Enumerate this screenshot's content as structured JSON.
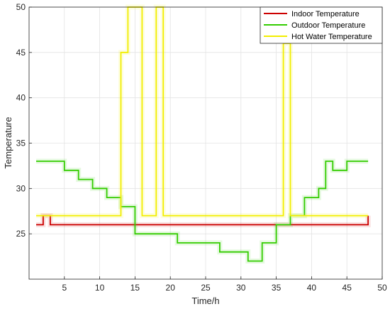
{
  "chart_data": {
    "type": "line",
    "step": true,
    "xlabel": "Time/h",
    "ylabel": "Temperature",
    "xlim": [
      0,
      50
    ],
    "ylim": [
      20,
      50
    ],
    "xticks": [
      5,
      10,
      15,
      20,
      25,
      30,
      35,
      40,
      45,
      50
    ],
    "yticks": [
      25,
      30,
      35,
      40,
      45,
      50
    ],
    "grid": true,
    "legend_position": "top-right",
    "series": [
      {
        "name": "Indoor Temperature",
        "color": "#cc0000",
        "x": [
          1,
          2,
          2,
          3,
          3,
          48,
          48
        ],
        "y": [
          26,
          26,
          27,
          27,
          26,
          26,
          27
        ]
      },
      {
        "name": "Outdoor Temperature",
        "color": "#33cc00",
        "x": [
          1,
          5,
          5,
          7,
          7,
          9,
          9,
          11,
          11,
          13,
          13,
          15,
          15,
          21,
          21,
          27,
          27,
          31,
          31,
          33,
          33,
          35,
          35,
          37,
          37,
          39,
          39,
          41,
          41,
          42,
          42,
          43,
          43,
          45,
          45,
          48
        ],
        "y": [
          33,
          33,
          32,
          32,
          31,
          31,
          30,
          30,
          29,
          29,
          28,
          28,
          25,
          25,
          24,
          24,
          23,
          23,
          22,
          22,
          24,
          24,
          26,
          26,
          27,
          27,
          29,
          29,
          30,
          30,
          33,
          33,
          32,
          32,
          33,
          33
        ]
      },
      {
        "name": "Hot Water Temperature",
        "color": "#f2ee00",
        "x": [
          1,
          13,
          13,
          14,
          14,
          16,
          16,
          18,
          18,
          19,
          19,
          36,
          36,
          37,
          37,
          48
        ],
        "y": [
          27,
          27,
          45,
          45,
          50,
          50,
          27,
          27,
          50,
          50,
          27,
          27,
          46,
          46,
          27,
          27
        ]
      }
    ]
  }
}
